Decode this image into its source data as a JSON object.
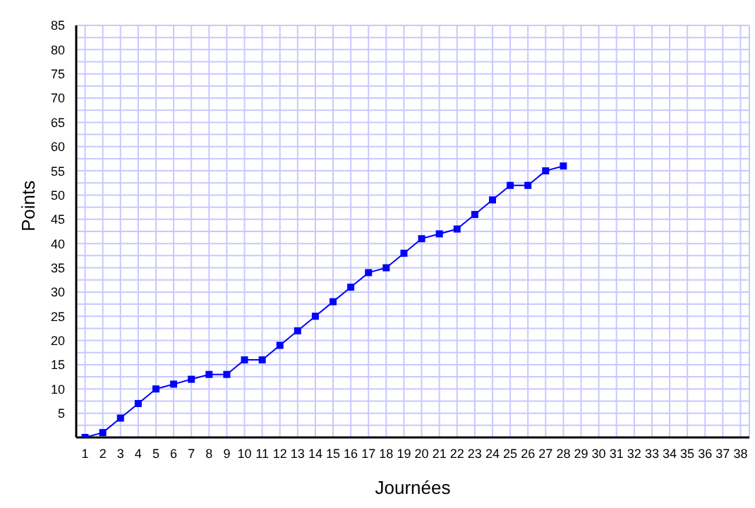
{
  "chart_data": {
    "type": "line",
    "xlabel": "Journées",
    "ylabel": "Points",
    "x": [
      1,
      2,
      3,
      4,
      5,
      6,
      7,
      8,
      9,
      10,
      11,
      12,
      13,
      14,
      15,
      16,
      17,
      18,
      19,
      20,
      21,
      22,
      23,
      24,
      25,
      26,
      27,
      28
    ],
    "series": [
      {
        "color": "#0000ff",
        "values": [
          0,
          1,
          4,
          7,
          10,
          11,
          12,
          13,
          13,
          16,
          16,
          19,
          22,
          25,
          28,
          31,
          34,
          35,
          38,
          41,
          42,
          43,
          46,
          49,
          52,
          52,
          55,
          56
        ]
      }
    ],
    "xlim": [
      0.5,
      38.5
    ],
    "xticks": [
      1,
      2,
      3,
      4,
      5,
      6,
      7,
      8,
      9,
      10,
      11,
      12,
      13,
      14,
      15,
      16,
      17,
      18,
      19,
      20,
      21,
      22,
      23,
      24,
      25,
      26,
      27,
      28,
      29,
      30,
      31,
      32,
      33,
      34,
      35,
      36,
      37,
      38
    ],
    "ylim": [
      0,
      85
    ],
    "yticks": [
      {
        "value": 2.5,
        "label": null
      },
      5,
      {
        "value": 7.5,
        "label": null
      },
      10,
      {
        "value": 12.5,
        "label": null
      },
      15,
      {
        "value": 17.5,
        "label": null
      },
      20,
      {
        "value": 22.5,
        "label": null
      },
      25,
      {
        "value": 27.5,
        "label": null
      },
      30,
      {
        "value": 32.5,
        "label": null
      },
      35,
      {
        "value": 37.5,
        "label": null
      },
      40,
      {
        "value": 42.5,
        "label": null
      },
      45,
      {
        "value": 47.5,
        "label": null
      },
      50,
      {
        "value": 52.5,
        "label": null
      },
      55,
      {
        "value": 57.5,
        "label": null
      },
      60,
      {
        "value": 62.5,
        "label": null
      },
      65,
      {
        "value": 67.5,
        "label": null
      },
      70,
      {
        "value": 72.5,
        "label": null
      },
      75,
      {
        "value": 77.5,
        "label": null
      },
      80,
      {
        "value": 82.5,
        "label": null
      },
      85
    ],
    "grid": true,
    "marker": "square",
    "line_style": "solid",
    "legend": false
  }
}
